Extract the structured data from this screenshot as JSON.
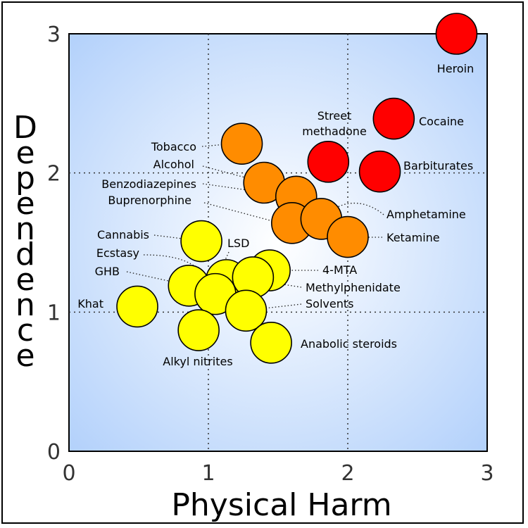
{
  "chart_data": {
    "type": "scatter",
    "xlabel": "Physical Harm",
    "ylabel": "Dependence",
    "xlim": [
      0,
      3
    ],
    "ylim": [
      0,
      3
    ],
    "xticks": [
      "0",
      "1",
      "2",
      "3"
    ],
    "yticks": [
      "0",
      "1",
      "2",
      "3"
    ],
    "grid_lines": {
      "x": [
        1,
        2
      ],
      "y": [
        1,
        2
      ]
    },
    "colors": {
      "red": "#ff0000",
      "orange": "#ff8c00",
      "yellow": "#ffff00",
      "bg_center": "#ffffff",
      "bg_edge": "#b3d1fb"
    },
    "points": [
      {
        "name": "Heroin",
        "label": "Heroin",
        "x": 2.78,
        "y": 3.0,
        "color": "red"
      },
      {
        "name": "Cocaine",
        "label": "Cocaine",
        "x": 2.33,
        "y": 2.39,
        "color": "red"
      },
      {
        "name": "Street methadone",
        "label": "Street methadone",
        "x": 1.86,
        "y": 2.08,
        "color": "red"
      },
      {
        "name": "Barbiturates",
        "label": "Barbiturates",
        "x": 2.23,
        "y": 2.01,
        "color": "red"
      },
      {
        "name": "Tobacco",
        "label": "Tobacco",
        "x": 1.24,
        "y": 2.21,
        "color": "orange"
      },
      {
        "name": "Alcohol",
        "label": "Alcohol",
        "x": 1.4,
        "y": 1.93,
        "color": "orange"
      },
      {
        "name": "Benzodiazepines",
        "label": "Benzodiazepines",
        "x": 1.63,
        "y": 1.83,
        "color": "orange"
      },
      {
        "name": "Buprenorphine",
        "label": "Buprenorphine",
        "x": 1.6,
        "y": 1.64,
        "color": "orange"
      },
      {
        "name": "Amphetamine",
        "label": "Amphetamine",
        "x": 1.81,
        "y": 1.67,
        "color": "orange"
      },
      {
        "name": "Ketamine",
        "label": "Ketamine",
        "x": 2.0,
        "y": 1.54,
        "color": "orange"
      },
      {
        "name": "Cannabis",
        "label": "Cannabis",
        "x": 0.95,
        "y": 1.51,
        "color": "yellow"
      },
      {
        "name": "4-MTA",
        "label": "4-MTA",
        "x": 1.44,
        "y": 1.3,
        "color": "yellow"
      },
      {
        "name": "LSD",
        "label": "LSD",
        "x": 1.13,
        "y": 1.23,
        "color": "yellow"
      },
      {
        "name": "Methylphenidate",
        "label": "Methylphenidate",
        "x": 1.32,
        "y": 1.25,
        "color": "yellow"
      },
      {
        "name": "GHB",
        "label": "GHB",
        "x": 0.86,
        "y": 1.19,
        "color": "yellow"
      },
      {
        "name": "Ecstasy",
        "label": "Ecstasy",
        "x": 1.05,
        "y": 1.13,
        "color": "yellow"
      },
      {
        "name": "Solvents",
        "label": "Solvents",
        "x": 1.27,
        "y": 1.01,
        "color": "yellow"
      },
      {
        "name": "Khat",
        "label": "Khat",
        "x": 0.49,
        "y": 1.04,
        "color": "yellow"
      },
      {
        "name": "Alkyl nitrites",
        "label": "Alkyl nitrites",
        "x": 0.93,
        "y": 0.87,
        "color": "yellow"
      },
      {
        "name": "Anabolic steroids",
        "label": "Anabolic steroids",
        "x": 1.45,
        "y": 0.78,
        "color": "yellow"
      }
    ]
  }
}
